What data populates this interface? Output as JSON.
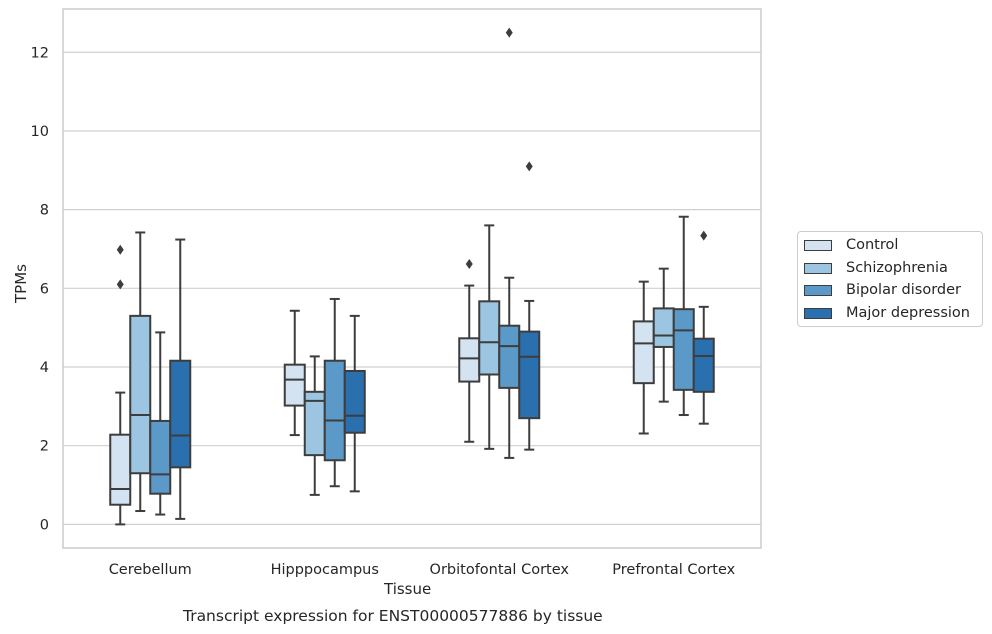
{
  "caption": "Transcript expression for ENST00000577886 by tissue",
  "chart_data": {
    "type": "box",
    "xlabel": "Tissue",
    "ylabel": "TPMs",
    "ylim": [
      -0.6,
      13.1
    ],
    "yticks": [
      0,
      2,
      4,
      6,
      8,
      10,
      12
    ],
    "grid": "horizontal",
    "legend_position": "right",
    "categories": [
      "Cerebellum",
      "Hipppocampus",
      "Orbitofontal Cortex",
      "Prefrontal Cortex"
    ],
    "series": [
      {
        "name": "Control",
        "color": "#d3e3f2",
        "boxes": [
          {
            "whislo": 0.0,
            "q1": 0.5,
            "med": 0.9,
            "q3": 2.28,
            "whishi": 3.35,
            "fliers": [
              6.1,
              6.98
            ]
          },
          {
            "whislo": 2.27,
            "q1": 3.02,
            "med": 3.68,
            "q3": 4.06,
            "whishi": 5.43,
            "fliers": []
          },
          {
            "whislo": 2.1,
            "q1": 3.63,
            "med": 4.22,
            "q3": 4.73,
            "whishi": 6.07,
            "fliers": [
              6.62
            ]
          },
          {
            "whislo": 2.31,
            "q1": 3.59,
            "med": 4.6,
            "q3": 5.16,
            "whishi": 6.17,
            "fliers": []
          }
        ]
      },
      {
        "name": "Schizophrenia",
        "color": "#9bc5e0",
        "boxes": [
          {
            "whislo": 0.34,
            "q1": 1.3,
            "med": 2.78,
            "q3": 5.3,
            "whishi": 7.42,
            "fliers": []
          },
          {
            "whislo": 0.75,
            "q1": 1.76,
            "med": 3.14,
            "q3": 3.37,
            "whishi": 4.27,
            "fliers": []
          },
          {
            "whislo": 1.92,
            "q1": 3.81,
            "med": 4.63,
            "q3": 5.67,
            "whishi": 7.6,
            "fliers": []
          },
          {
            "whislo": 3.12,
            "q1": 4.51,
            "med": 4.8,
            "q3": 5.49,
            "whishi": 6.5,
            "fliers": []
          }
        ]
      },
      {
        "name": "Bipolar disorder",
        "color": "#5b9ac8",
        "boxes": [
          {
            "whislo": 0.25,
            "q1": 0.78,
            "med": 1.27,
            "q3": 2.63,
            "whishi": 4.88,
            "fliers": []
          },
          {
            "whislo": 0.97,
            "q1": 1.63,
            "med": 2.64,
            "q3": 4.16,
            "whishi": 5.73,
            "fliers": []
          },
          {
            "whislo": 1.69,
            "q1": 3.47,
            "med": 4.53,
            "q3": 5.05,
            "whishi": 6.27,
            "fliers": [
              12.5
            ]
          },
          {
            "whislo": 2.78,
            "q1": 3.42,
            "med": 4.93,
            "q3": 5.47,
            "whishi": 7.82,
            "fliers": []
          }
        ]
      },
      {
        "name": "Major depression",
        "color": "#2a6fae",
        "boxes": [
          {
            "whislo": 0.14,
            "q1": 1.45,
            "med": 2.26,
            "q3": 4.16,
            "whishi": 7.24,
            "fliers": []
          },
          {
            "whislo": 0.84,
            "q1": 2.33,
            "med": 2.76,
            "q3": 3.9,
            "whishi": 5.3,
            "fliers": []
          },
          {
            "whislo": 1.9,
            "q1": 2.7,
            "med": 4.26,
            "q3": 4.9,
            "whishi": 5.68,
            "fliers": [
              9.1
            ]
          },
          {
            "whislo": 2.56,
            "q1": 3.37,
            "med": 4.28,
            "q3": 4.72,
            "whishi": 5.53,
            "fliers": [
              7.34
            ]
          }
        ]
      }
    ]
  }
}
